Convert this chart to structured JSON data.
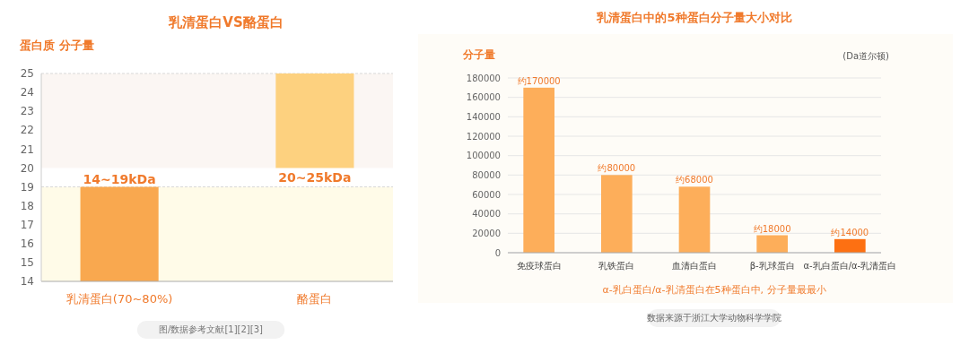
{
  "chart_data": [
    {
      "type": "bar",
      "title": "乳清蛋白VS酪蛋白",
      "ylabel": "蛋白质 分子量",
      "categories": [
        "乳清蛋白(70~80%)",
        "酪蛋白"
      ],
      "base": [
        14,
        20
      ],
      "values": [
        5,
        5
      ],
      "colors": [
        "#f9a84f",
        "#fdd17f"
      ],
      "ylim": [
        14,
        25
      ],
      "yticks": [
        14,
        15,
        16,
        17,
        18,
        19,
        20,
        21,
        22,
        23,
        24,
        25
      ],
      "bands": [
        {
          "axis": "y",
          "from": 14,
          "to": 19,
          "color": "#fffbe8"
        },
        {
          "axis": "y",
          "from": 20,
          "to": 25,
          "color": "#fbf6f3"
        }
      ],
      "annotations": [
        {
          "text": "14~19kDa",
          "x": "乳清蛋白(70~80%)",
          "y": 19
        },
        {
          "text": "20~25kDa",
          "x": "酪蛋白",
          "y": 20
        },
        "图/数据参考文献[1][2][3]"
      ]
    },
    {
      "type": "bar",
      "title": "乳清蛋白中的5种蛋白分子量大小对比",
      "ylabel": "分子量",
      "categories": [
        "免疫球蛋白",
        "乳铁蛋白",
        "血清白蛋白",
        "β-乳球蛋白",
        "α-乳白蛋白/α-乳清蛋白"
      ],
      "values": [
        170000,
        80000,
        68000,
        18000,
        14000
      ],
      "colors": [
        "#fdae5a",
        "#fdae5a",
        "#fdae5a",
        "#fdae5a",
        "#fd7012"
      ],
      "value_labels": [
        "约170000",
        "约80000",
        "约68000",
        "约18000",
        "约14000"
      ],
      "ylim": [
        0,
        180000
      ],
      "yticks": [
        0,
        20000,
        40000,
        60000,
        80000,
        100000,
        120000,
        140000,
        160000,
        180000
      ],
      "grid": "y",
      "annotations": [
        "(Da道尔顿)",
        "α-乳白蛋白/α-乳清蛋白在5种蛋白中, 分子量最最小",
        "数据来源于浙江大学动物科学学院"
      ]
    }
  ]
}
